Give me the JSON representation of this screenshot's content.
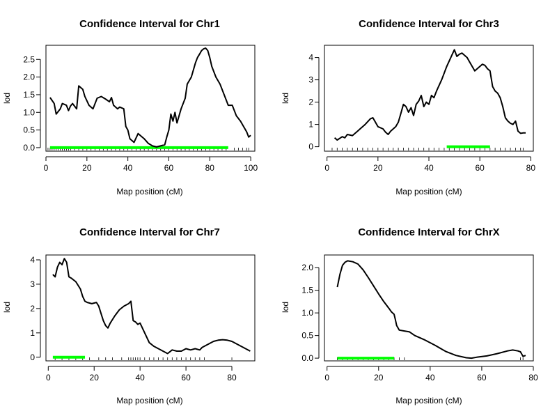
{
  "chart_data": [
    {
      "type": "line",
      "title": "Confidence Interval for Chr1",
      "xlabel": "Map position (cM)",
      "ylabel": "lod",
      "xlim": [
        0,
        102
      ],
      "ylim": [
        -0.1,
        2.9
      ],
      "xticks": [
        0,
        20,
        40,
        60,
        80,
        100
      ],
      "yticks": [
        0.0,
        0.5,
        1.0,
        1.5,
        2.0,
        2.5
      ],
      "ytick_labels": [
        "0.0",
        "0.5",
        "1.0",
        "1.5",
        "2.0",
        "2.5"
      ],
      "confidence_interval": [
        2,
        89
      ],
      "ci_color": "#00ff00",
      "x": [
        2,
        4,
        5,
        7,
        8,
        10,
        11,
        12,
        13,
        15,
        16,
        18,
        19,
        21,
        23,
        25,
        27,
        29,
        31,
        32,
        33,
        35,
        36,
        38,
        39,
        40,
        41,
        42,
        43,
        45,
        46,
        47,
        48,
        50,
        52,
        54,
        56,
        58,
        59,
        60,
        61,
        62,
        63,
        64,
        66,
        68,
        69,
        71,
        73,
        74,
        75,
        76,
        77,
        78,
        79,
        80,
        81,
        83,
        85,
        87,
        89,
        91,
        93,
        95,
        97,
        98,
        99,
        100
      ],
      "y": [
        1.42,
        1.25,
        0.95,
        1.1,
        1.25,
        1.2,
        1.05,
        1.18,
        1.25,
        1.1,
        1.75,
        1.65,
        1.45,
        1.2,
        1.1,
        1.4,
        1.45,
        1.38,
        1.3,
        1.42,
        1.2,
        1.1,
        1.15,
        1.1,
        0.6,
        0.5,
        0.25,
        0.2,
        0.15,
        0.4,
        0.35,
        0.3,
        0.25,
        0.12,
        0.05,
        0.02,
        0.05,
        0.08,
        0.3,
        0.5,
        0.95,
        0.75,
        1.0,
        0.7,
        1.1,
        1.4,
        1.8,
        2.0,
        2.4,
        2.55,
        2.65,
        2.75,
        2.8,
        2.82,
        2.75,
        2.55,
        2.3,
        2.0,
        1.8,
        1.5,
        1.2,
        1.2,
        0.9,
        0.75,
        0.55,
        0.45,
        0.3,
        0.35
      ],
      "markers": [
        1,
        2,
        3,
        4,
        5,
        6,
        7,
        8,
        9,
        10,
        11,
        12,
        14,
        16,
        18,
        20,
        22,
        24,
        26,
        28,
        30,
        32,
        34,
        36,
        38,
        40,
        42,
        44,
        46,
        48,
        50,
        52,
        54,
        56,
        58,
        60,
        62,
        64,
        66,
        68,
        70,
        72,
        74,
        76,
        78,
        80,
        82,
        84,
        86,
        88,
        92,
        94,
        96,
        98,
        99
      ]
    },
    {
      "type": "line",
      "title": "Confidence Interval for Chr3",
      "xlabel": "Map position (cM)",
      "ylabel": "lod",
      "xlim": [
        -1,
        81
      ],
      "ylim": [
        -0.2,
        4.55
      ],
      "xticks": [
        0,
        20,
        40,
        60,
        80
      ],
      "yticks": [
        0,
        1,
        2,
        3,
        4
      ],
      "ytick_labels": [
        "0",
        "1",
        "2",
        "3",
        "4"
      ],
      "confidence_interval": [
        47,
        64
      ],
      "ci_color": "#00ff00",
      "x": [
        3,
        4,
        6,
        7,
        8,
        10,
        12,
        13,
        15,
        17,
        18,
        19,
        20,
        22,
        23,
        24,
        25,
        27,
        28,
        29,
        30,
        31,
        32,
        33,
        34,
        35,
        36,
        37,
        38,
        39,
        40,
        41,
        42,
        43,
        45,
        47,
        49,
        50,
        51,
        52,
        53,
        55,
        56,
        57,
        58,
        60,
        61,
        62,
        63,
        64,
        65,
        66,
        67,
        68,
        69,
        70,
        71,
        72,
        73,
        74,
        75,
        76,
        77,
        78
      ],
      "y": [
        0.4,
        0.3,
        0.45,
        0.4,
        0.55,
        0.5,
        0.7,
        0.8,
        1.0,
        1.25,
        1.3,
        1.1,
        0.9,
        0.8,
        0.65,
        0.55,
        0.7,
        0.9,
        1.1,
        1.5,
        1.9,
        1.8,
        1.55,
        1.75,
        1.4,
        1.9,
        2.05,
        2.3,
        1.8,
        2.0,
        1.9,
        2.3,
        2.2,
        2.5,
        3.0,
        3.6,
        4.1,
        4.35,
        4.05,
        4.15,
        4.2,
        4.0,
        3.8,
        3.6,
        3.4,
        3.6,
        3.7,
        3.65,
        3.5,
        3.4,
        2.7,
        2.5,
        2.4,
        2.2,
        1.8,
        1.3,
        1.15,
        1.05,
        1.0,
        1.15,
        0.7,
        0.6,
        0.62,
        0.62
      ],
      "markers": [
        2,
        4,
        6,
        8,
        10,
        12,
        14,
        16,
        18,
        20,
        22,
        24,
        26,
        28,
        30,
        32,
        34,
        36,
        38,
        40,
        42,
        44,
        46,
        48,
        50,
        52,
        54,
        56,
        58,
        60,
        62,
        64,
        66,
        68,
        70,
        72,
        74,
        76,
        77
      ]
    },
    {
      "type": "line",
      "title": "Confidence Interval for Chr7",
      "xlabel": "Map position (cM)",
      "ylabel": "lod",
      "xlim": [
        -1,
        90
      ],
      "ylim": [
        -0.15,
        4.2
      ],
      "xticks": [
        0,
        20,
        40,
        60,
        80
      ],
      "yticks": [
        0,
        1,
        2,
        3,
        4
      ],
      "ytick_labels": [
        "0",
        "1",
        "2",
        "3",
        "4"
      ],
      "confidence_interval": [
        2,
        16
      ],
      "ci_color": "#00ff00",
      "x": [
        2,
        3,
        4,
        5,
        6,
        7,
        8,
        9,
        10,
        12,
        14,
        15,
        16,
        17,
        19,
        21,
        22,
        23,
        24,
        25,
        26,
        27,
        29,
        31,
        33,
        35,
        36,
        37,
        38,
        39,
        40,
        42,
        44,
        46,
        48,
        50,
        52,
        54,
        56,
        58,
        60,
        62,
        64,
        66,
        67,
        70,
        72,
        74,
        76,
        78,
        80,
        82,
        84,
        86,
        88
      ],
      "y": [
        3.4,
        3.3,
        3.7,
        3.9,
        3.8,
        4.05,
        3.9,
        3.3,
        3.25,
        3.1,
        2.8,
        2.5,
        2.3,
        2.25,
        2.2,
        2.25,
        2.1,
        1.8,
        1.5,
        1.3,
        1.2,
        1.4,
        1.7,
        1.95,
        2.1,
        2.2,
        2.3,
        1.5,
        1.45,
        1.35,
        1.4,
        1.0,
        0.6,
        0.45,
        0.35,
        0.25,
        0.15,
        0.3,
        0.25,
        0.25,
        0.35,
        0.3,
        0.35,
        0.3,
        0.4,
        0.55,
        0.65,
        0.7,
        0.72,
        0.7,
        0.65,
        0.55,
        0.45,
        0.35,
        0.25
      ],
      "markers": [
        3,
        6,
        9,
        12,
        15,
        18,
        22,
        25,
        28,
        32,
        35,
        36,
        37,
        38,
        39,
        40,
        42,
        44,
        46,
        48,
        50,
        52,
        54,
        56,
        58,
        60,
        62,
        64,
        66,
        68,
        80
      ]
    },
    {
      "type": "line",
      "title": "Confidence Interval for ChrX",
      "xlabel": "Map position (cM)",
      "ylabel": "lod",
      "xlim": [
        -1,
        80
      ],
      "ylim": [
        -0.06,
        2.28
      ],
      "xticks": [
        0,
        20,
        40,
        60,
        80
      ],
      "yticks": [
        0.0,
        0.5,
        1.0,
        1.5,
        2.0
      ],
      "ytick_labels": [
        "0.0",
        "0.5",
        "1.0",
        "1.5",
        "2.0"
      ],
      "confidence_interval": [
        4,
        26
      ],
      "ci_color": "#00ff00",
      "x": [
        4,
        5,
        6,
        7,
        8,
        10,
        12,
        14,
        16,
        18,
        20,
        22,
        24,
        25,
        26,
        26.5,
        27,
        28,
        30,
        32,
        34,
        38,
        42,
        46,
        50,
        54,
        56,
        58,
        62,
        66,
        70,
        72,
        74,
        75,
        76,
        77
      ],
      "y": [
        1.57,
        1.85,
        2.05,
        2.12,
        2.15,
        2.13,
        2.08,
        1.95,
        1.78,
        1.6,
        1.42,
        1.25,
        1.1,
        1.02,
        0.97,
        0.85,
        0.72,
        0.62,
        0.6,
        0.58,
        0.5,
        0.4,
        0.28,
        0.15,
        0.06,
        0.01,
        0.0,
        0.02,
        0.05,
        0.1,
        0.16,
        0.18,
        0.16,
        0.14,
        0.04,
        0.06
      ],
      "markers": [
        4,
        6,
        8,
        10,
        12,
        14,
        16,
        18,
        20,
        22,
        24,
        26,
        28,
        30,
        75,
        76
      ]
    }
  ]
}
